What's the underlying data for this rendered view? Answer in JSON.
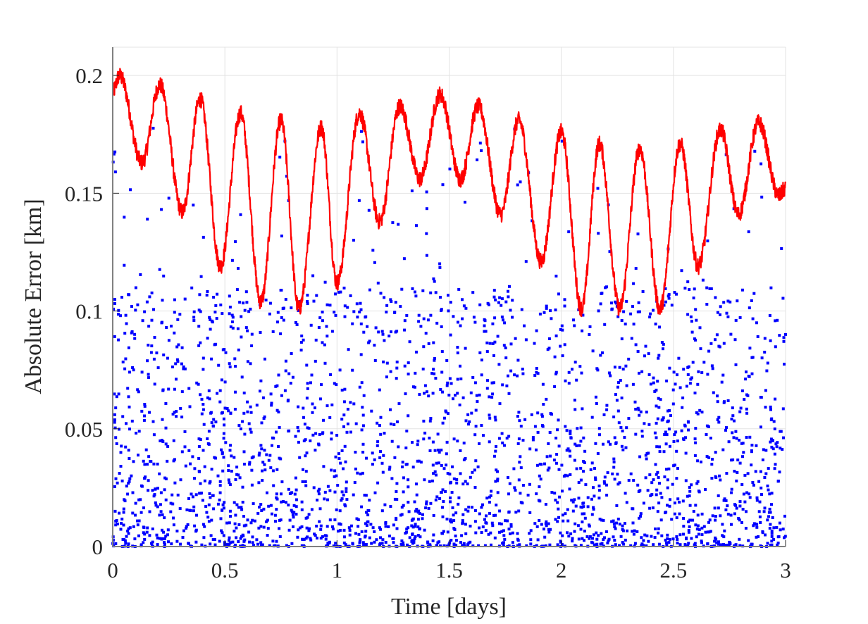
{
  "chart_data": {
    "type": "line+scatter",
    "xlabel": "Time [days]",
    "ylabel": "Absolute Error [km]",
    "xlim": [
      0,
      3
    ],
    "ylim": [
      0,
      0.212
    ],
    "xticks": [
      "0",
      "0.5",
      "1",
      "1.5",
      "2",
      "2.5",
      "3"
    ],
    "yticks": [
      "0",
      "0.05",
      "0.1",
      "0.15",
      "0.2"
    ],
    "grid": true,
    "series": [
      {
        "type": "line",
        "color": "#ff0000",
        "x": [
          0,
          0.03,
          0.13,
          0.21,
          0.31,
          0.39,
          0.48,
          0.57,
          0.66,
          0.75,
          0.83,
          0.93,
          1.0,
          1.1,
          1.19,
          1.28,
          1.37,
          1.46,
          1.55,
          1.63,
          1.73,
          1.81,
          1.91,
          2.0,
          2.09,
          2.17,
          2.26,
          2.35,
          2.44,
          2.53,
          2.61,
          2.71,
          2.79,
          2.88,
          2.97,
          3.0
        ],
        "y": [
          0.193,
          0.2,
          0.163,
          0.196,
          0.142,
          0.19,
          0.119,
          0.184,
          0.104,
          0.181,
          0.101,
          0.178,
          0.112,
          0.184,
          0.138,
          0.187,
          0.156,
          0.192,
          0.156,
          0.187,
          0.141,
          0.181,
          0.121,
          0.176,
          0.101,
          0.171,
          0.101,
          0.169,
          0.101,
          0.171,
          0.119,
          0.177,
          0.141,
          0.18,
          0.149,
          0.152
        ]
      },
      {
        "type": "scatter",
        "color": "#0000ff",
        "y_range": [
          0,
          0.185
        ],
        "x_range": [
          0,
          3
        ]
      }
    ]
  }
}
